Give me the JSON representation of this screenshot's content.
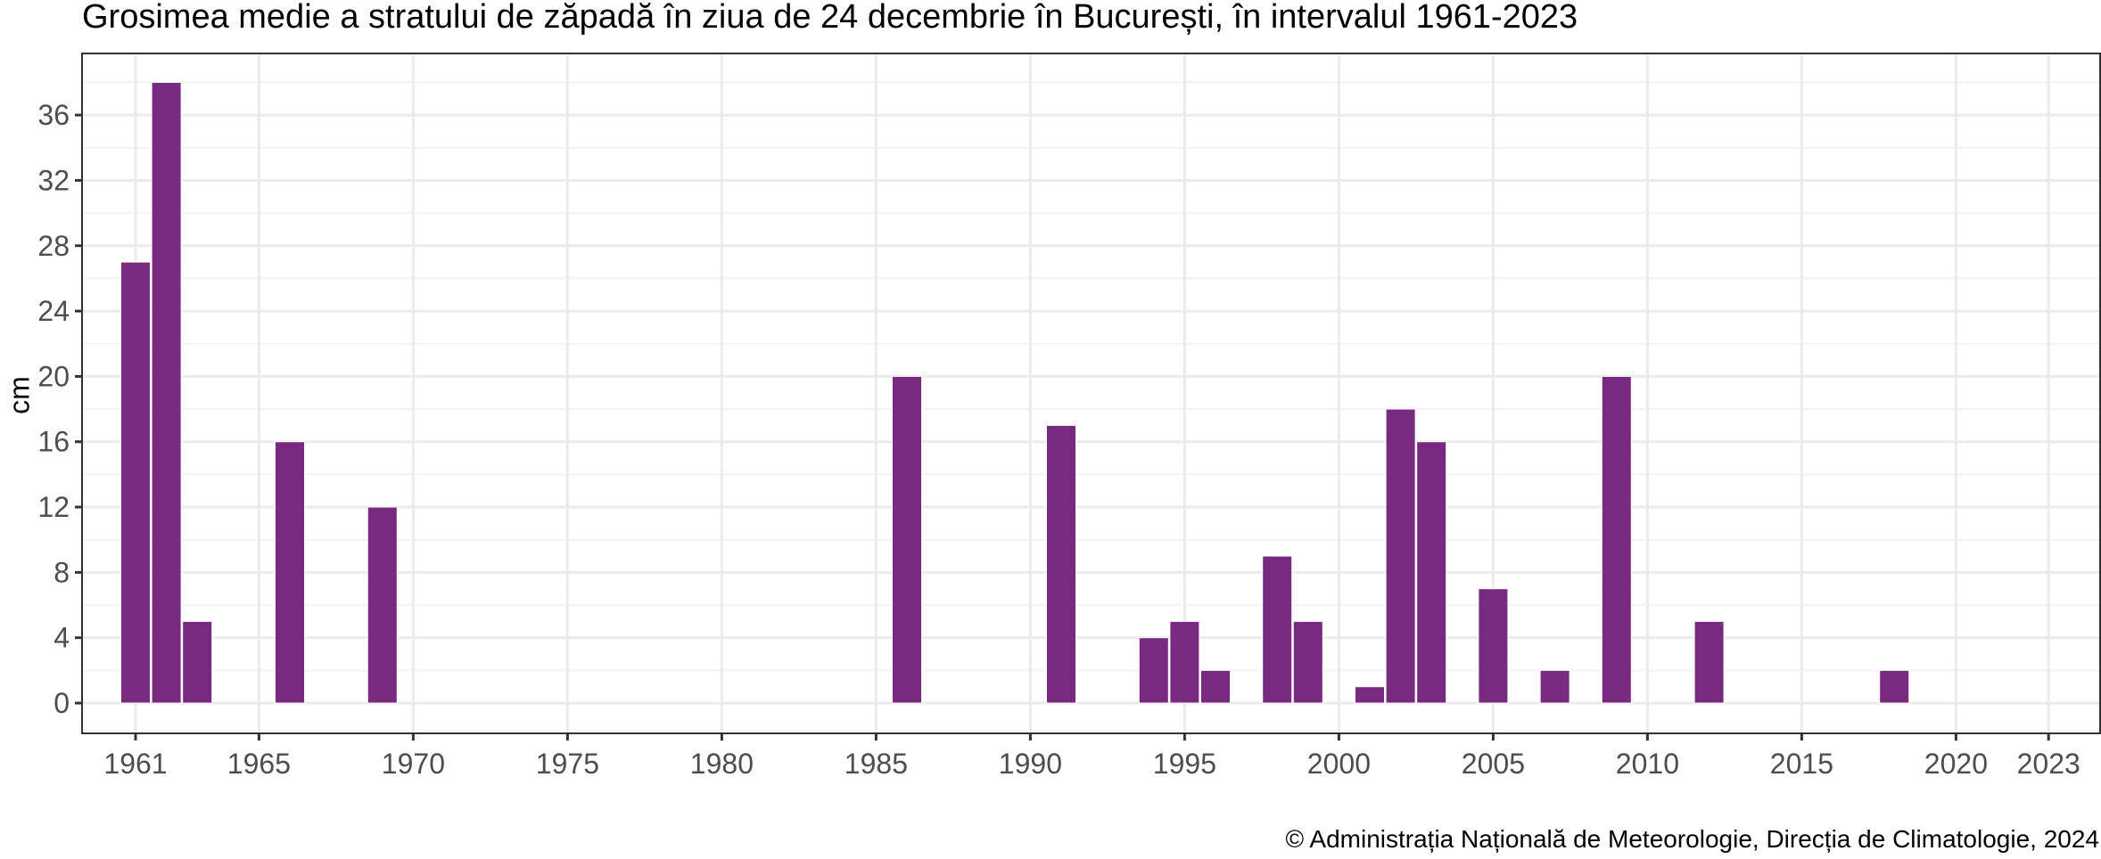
{
  "title": "Grosimea medie a stratului de zăpadă în ziua de 24 decembrie în București, în intervalul 1961-2023",
  "ylabel": "cm",
  "caption": "© Administrația Națională de Meteorologie, Direcția de Climatologie, 2024",
  "colors": {
    "bar": "#772A80",
    "grid_major": "#EBEBEB",
    "grid_minor": "#F2F2F2",
    "panel_border": "#333333",
    "tick_text": "#4D4D4D"
  },
  "chart_data": {
    "type": "bar",
    "title": "Grosimea medie a stratului de zăpadă în ziua de 24 decembrie în București, în intervalul 1961-2023",
    "xlabel": "",
    "ylabel": "cm",
    "xlim": [
      1960,
      2024
    ],
    "ylim": [
      -1.9,
      39.8
    ],
    "x_ticks": [
      1961,
      1965,
      1970,
      1975,
      1980,
      1985,
      1990,
      1995,
      2000,
      2005,
      2010,
      2015,
      2020,
      2023
    ],
    "y_ticks": [
      0,
      4,
      8,
      12,
      16,
      20,
      24,
      28,
      32,
      36
    ],
    "grid": true,
    "legend": "none",
    "categories": [
      1961,
      1962,
      1963,
      1966,
      1969,
      1986,
      1991,
      1994,
      1995,
      1996,
      1998,
      1999,
      2001,
      2002,
      2003,
      2005,
      2007,
      2009,
      2012,
      2018
    ],
    "values": [
      27,
      38,
      5,
      16,
      12,
      20,
      17,
      4,
      5,
      2,
      9,
      5,
      1,
      18,
      16,
      7,
      2,
      20,
      5,
      2
    ],
    "caption": "© Administrația Națională de Meteorologie, Direcția de Climatologie, 2024"
  }
}
